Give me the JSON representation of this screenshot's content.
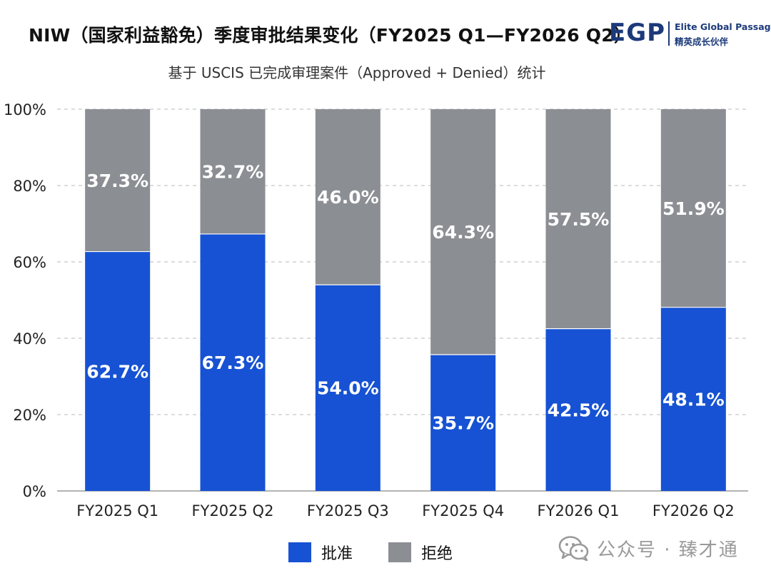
{
  "title": "NIW（国家利益豁免）季度审批结果变化（FY2025 Q1—FY2026 Q2）",
  "subtitle": "基于 USCIS 已完成审理案件（Approved + Denied）统计",
  "logo": {
    "mark": "EGP",
    "name_en": "Elite Global Passage",
    "name_cn": "精英成长伙伴"
  },
  "watermark": {
    "icon": "wechat-icon",
    "label": "公众号 · 臻才通"
  },
  "colors": {
    "approved": "#1652d3",
    "denied": "#8b8e93",
    "grid": "#c8c8c8",
    "axis": "#9a9a9a"
  },
  "chart_data": {
    "type": "bar",
    "stacked": true,
    "categories": [
      "FY2025 Q1",
      "FY2025 Q2",
      "FY2025 Q3",
      "FY2025 Q4",
      "FY2026 Q1",
      "FY2026 Q2"
    ],
    "series": [
      {
        "name": "批准",
        "values": [
          62.7,
          67.3,
          54.0,
          35.7,
          42.5,
          48.1
        ],
        "labels": [
          "62.7%",
          "67.3%",
          "54.0%",
          "35.7%",
          "42.5%",
          "48.1%"
        ]
      },
      {
        "name": "拒绝",
        "values": [
          37.3,
          32.7,
          46.0,
          64.3,
          57.5,
          51.9
        ],
        "labels": [
          "37.3%",
          "32.7%",
          "46.0%",
          "64.3%",
          "57.5%",
          "51.9%"
        ]
      }
    ],
    "ylim": [
      0,
      100
    ],
    "yticks": [
      0,
      20,
      40,
      60,
      80,
      100
    ],
    "ytick_labels": [
      "0%",
      "20%",
      "40%",
      "60%",
      "80%",
      "100%"
    ],
    "grid": true,
    "legend_position": "bottom"
  }
}
